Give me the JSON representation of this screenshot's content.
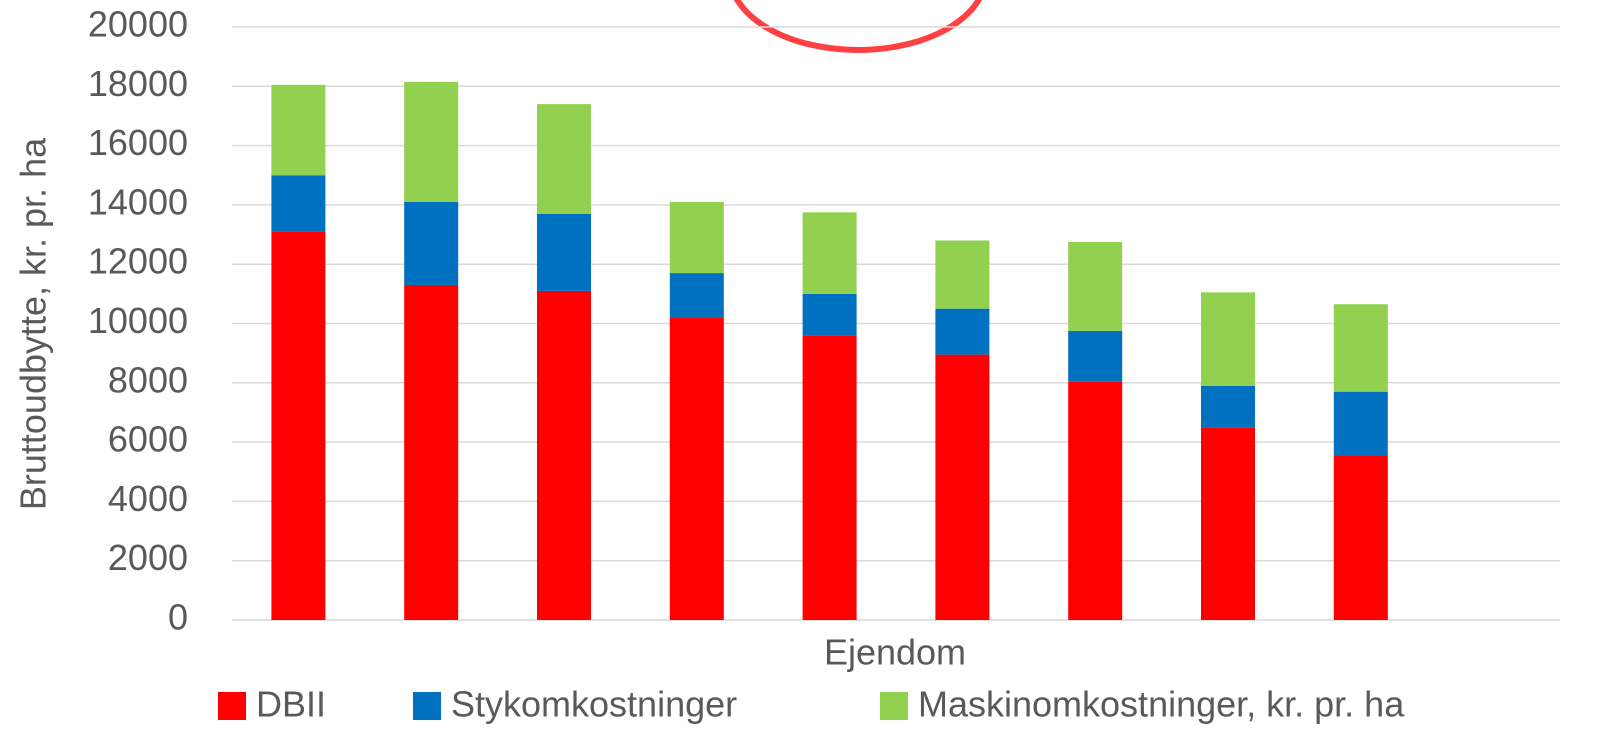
{
  "chart_data": {
    "type": "bar",
    "stacked": true,
    "x_label": "Ejendom",
    "y_label": "Bruttoudbytte, kr. pr. ha",
    "categories": [
      null,
      null,
      null,
      null,
      null,
      null,
      null,
      null,
      null,
      null
    ],
    "series": [
      {
        "name": "DBII",
        "color": "#ff0000",
        "values": [
          13100,
          11300,
          11100,
          10200,
          9600,
          8950,
          8050,
          6500,
          5550,
          null
        ]
      },
      {
        "name": "Stykomkostninger",
        "color": "#0070c0",
        "values": [
          1900,
          2800,
          2600,
          1500,
          1400,
          1550,
          1700,
          1400,
          2150,
          null
        ]
      },
      {
        "name": "Maskinomkostninger, kr. pr. ha",
        "color": "#92d050",
        "values": [
          3050,
          4050,
          3700,
          2400,
          2750,
          2300,
          3000,
          3150,
          2950,
          null
        ]
      }
    ],
    "ylim": [
      0,
      20000
    ],
    "yticks": [
      0,
      2000,
      4000,
      6000,
      8000,
      10000,
      12000,
      14000,
      16000,
      18000,
      20000
    ],
    "grid": true,
    "legend": "bottom"
  }
}
